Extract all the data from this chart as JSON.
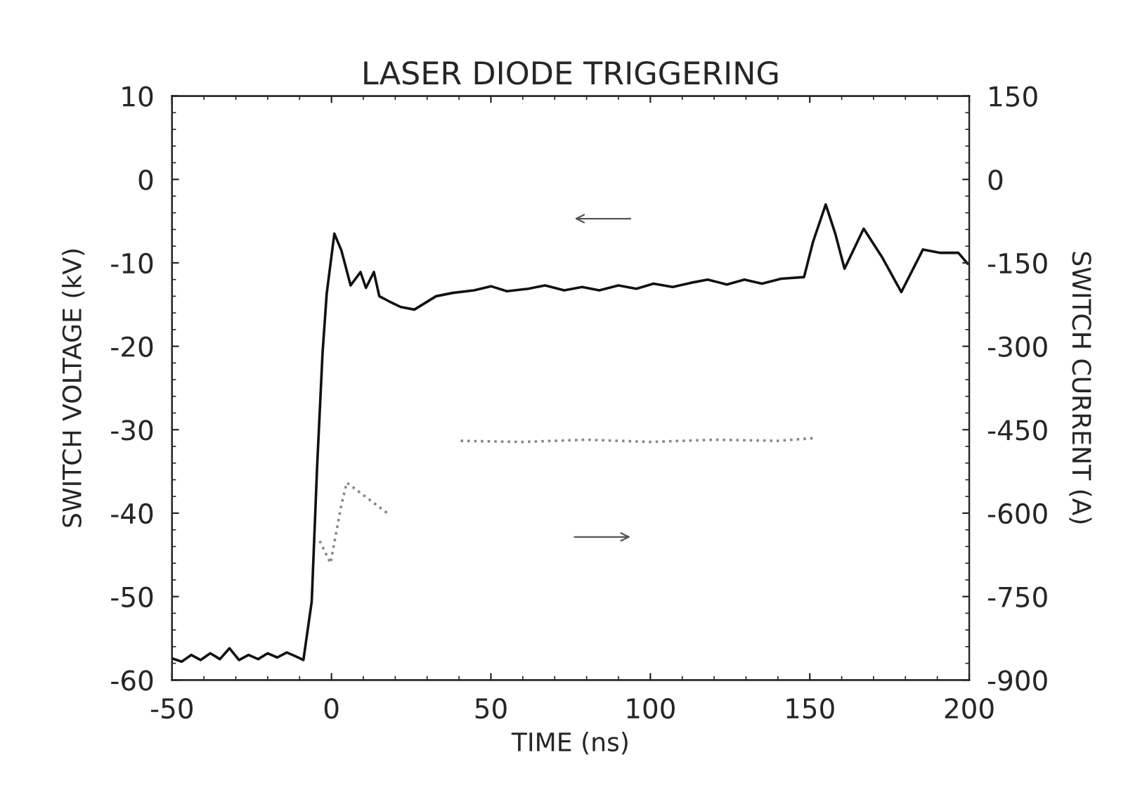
{
  "chart_data": {
    "type": "line",
    "title": "LASER DIODE TRIGGERING",
    "xlabel": "TIME (ns)",
    "ylabel": "SWITCH VOLTAGE (kV)",
    "y2label": "SWITCH CURRENT (A)",
    "xlim": [
      -50,
      200
    ],
    "xticks": [
      -50,
      0,
      50,
      100,
      150,
      200
    ],
    "ylim": [
      -60,
      10
    ],
    "yticks": [
      -60,
      -50,
      -40,
      -30,
      -20,
      -10,
      0,
      10
    ],
    "y2lim": [
      -900,
      150
    ],
    "y2ticks": [
      -900,
      -750,
      -600,
      -450,
      -300,
      -150,
      0,
      150
    ],
    "grid": false,
    "legend": false,
    "series": [
      {
        "color": "#111111",
        "line_style": "solid",
        "x": [
          -50,
          -47,
          -44,
          -41,
          -38,
          -35,
          -32,
          -29,
          -26,
          -23,
          -20,
          -17,
          -14,
          -11,
          -8.8,
          -6.2,
          -4.5,
          -2.8,
          -1.5,
          0.9,
          3.1,
          6.0,
          9.1,
          10.8,
          13.3,
          15.0,
          18.0,
          21.8,
          26.0,
          32.8,
          38,
          44.7,
          50,
          55,
          61.7,
          67,
          73,
          78.6,
          84,
          90,
          95.6,
          101,
          107,
          112.6,
          118,
          124,
          129.5,
          135,
          141,
          148.2,
          151,
          155,
          158,
          160.9,
          166.9,
          172.8,
          178.7,
          185.5,
          191,
          196.6,
          199.5
        ],
        "values": [
          -57.4,
          -57.8,
          -57.0,
          -57.6,
          -56.8,
          -57.5,
          -56.2,
          -57.6,
          -57.0,
          -57.5,
          -56.8,
          -57.3,
          -56.7,
          -57.2,
          -57.6,
          -50.6,
          -34.4,
          -20.8,
          -13.7,
          -6.5,
          -8.5,
          -12.7,
          -11.1,
          -13.0,
          -11.1,
          -14.0,
          -14.6,
          -15.3,
          -15.6,
          -14.0,
          -13.6,
          -13.3,
          -12.8,
          -13.4,
          -13.1,
          -12.7,
          -13.3,
          -12.9,
          -13.3,
          -12.7,
          -13.1,
          -12.5,
          -12.9,
          -12.4,
          -12.0,
          -12.6,
          -12.0,
          -12.5,
          -11.9,
          -11.7,
          -7.5,
          -3.0,
          -6.5,
          -10.7,
          -5.9,
          -9.4,
          -13.5,
          -8.4,
          -8.8,
          -8.8,
          -10.1
        ]
      },
      {
        "color": "#888888",
        "axis": "y2",
        "line_style": "dotted",
        "x": [
          -3.7,
          -0.3,
          3.1,
          4.8,
          17.5,
          25,
          40.5,
          60,
          80,
          100,
          120,
          140,
          151.6
        ],
        "values": [
          -650,
          -690,
          -585,
          -545,
          -600,
          null,
          -470,
          -472,
          -468,
          -472,
          -468,
          -470,
          -465
        ]
      }
    ]
  }
}
